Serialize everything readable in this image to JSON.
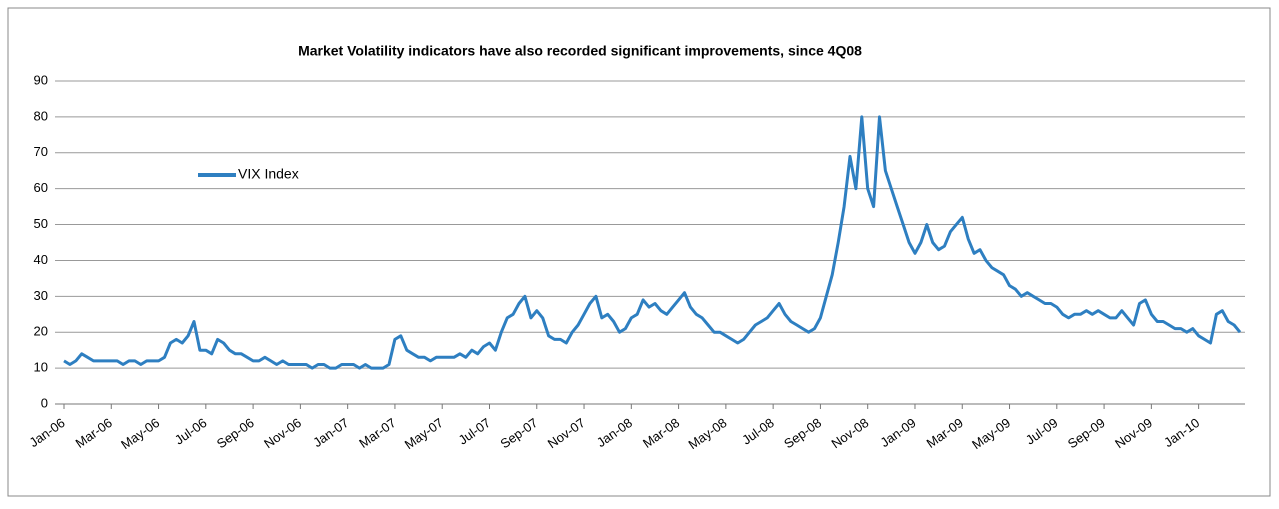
{
  "chart_data": {
    "type": "line",
    "title": "Market Volatility indicators have also recorded significant improvements, since 4Q08",
    "categories": [
      "Jan-06",
      null,
      null,
      null,
      null,
      null,
      null,
      null,
      "Mar-06",
      null,
      null,
      null,
      null,
      null,
      null,
      null,
      "May-06",
      null,
      null,
      null,
      null,
      null,
      null,
      null,
      "Jul-06",
      null,
      null,
      null,
      null,
      null,
      null,
      null,
      "Sep-06",
      null,
      null,
      null,
      null,
      null,
      null,
      null,
      "Nov-06",
      null,
      null,
      null,
      null,
      null,
      null,
      null,
      "Jan-07",
      null,
      null,
      null,
      null,
      null,
      null,
      null,
      "Mar-07",
      null,
      null,
      null,
      null,
      null,
      null,
      null,
      "May-07",
      null,
      null,
      null,
      null,
      null,
      null,
      null,
      "Jul-07",
      null,
      null,
      null,
      null,
      null,
      null,
      null,
      "Sep-07",
      null,
      null,
      null,
      null,
      null,
      null,
      null,
      "Nov-07",
      null,
      null,
      null,
      null,
      null,
      null,
      null,
      "Jan-08",
      null,
      null,
      null,
      null,
      null,
      null,
      null,
      "Mar-08",
      null,
      null,
      null,
      null,
      null,
      null,
      null,
      "May-08",
      null,
      null,
      null,
      null,
      null,
      null,
      null,
      "Jul-08",
      null,
      null,
      null,
      null,
      null,
      null,
      null,
      "Sep-08",
      null,
      null,
      null,
      null,
      null,
      null,
      null,
      "Nov-08",
      null,
      null,
      null,
      null,
      null,
      null,
      null,
      "Jan-09",
      null,
      null,
      null,
      null,
      null,
      null,
      null,
      "Mar-09",
      null,
      null,
      null,
      null,
      null,
      null,
      null,
      "May-09",
      null,
      null,
      null,
      null,
      null,
      null,
      null,
      "Jul-09",
      null,
      null,
      null,
      null,
      null,
      null,
      null,
      "Sep-09",
      null,
      null,
      null,
      null,
      null,
      null,
      null,
      "Nov-09",
      null,
      null,
      null,
      null,
      null,
      null,
      null,
      "Jan-10",
      null,
      null,
      null,
      null,
      null,
      null,
      null
    ],
    "series": [
      {
        "name": "VIX Index",
        "color": "#2e7fc1",
        "values": [
          12,
          11,
          12,
          14,
          13,
          12,
          12,
          12,
          12,
          12,
          11,
          12,
          12,
          11,
          12,
          12,
          12,
          13,
          17,
          18,
          17,
          19,
          23,
          15,
          15,
          14,
          18,
          17,
          15,
          14,
          14,
          13,
          12,
          12,
          13,
          12,
          11,
          12,
          11,
          11,
          11,
          11,
          10,
          11,
          11,
          10,
          10,
          11,
          11,
          11,
          10,
          11,
          10,
          10,
          10,
          11,
          18,
          19,
          15,
          14,
          13,
          13,
          12,
          13,
          13,
          13,
          13,
          14,
          13,
          15,
          14,
          16,
          17,
          15,
          20,
          24,
          25,
          28,
          30,
          24,
          26,
          24,
          19,
          18,
          18,
          17,
          20,
          22,
          25,
          28,
          30,
          24,
          25,
          23,
          20,
          21,
          24,
          25,
          29,
          27,
          28,
          26,
          25,
          27,
          29,
          31,
          27,
          25,
          24,
          22,
          20,
          20,
          19,
          18,
          17,
          18,
          20,
          22,
          23,
          24,
          26,
          28,
          25,
          23,
          22,
          21,
          20,
          21,
          24,
          30,
          36,
          45,
          55,
          69,
          60,
          80,
          60,
          55,
          80,
          65,
          60,
          55,
          50,
          45,
          42,
          45,
          50,
          45,
          43,
          44,
          48,
          50,
          52,
          46,
          42,
          43,
          40,
          38,
          37,
          36,
          33,
          32,
          30,
          31,
          30,
          29,
          28,
          28,
          27,
          25,
          24,
          25,
          25,
          26,
          25,
          26,
          25,
          24,
          24,
          26,
          24,
          22,
          28,
          29,
          25,
          23,
          23,
          22,
          21,
          21,
          20,
          21,
          19,
          18,
          17,
          25,
          26,
          23,
          22,
          20
        ]
      }
    ],
    "ylim": [
      0,
      90
    ],
    "yticks": [
      0,
      10,
      20,
      30,
      40,
      50,
      60,
      70,
      80,
      90
    ],
    "grid": true,
    "legend": "upper left"
  }
}
